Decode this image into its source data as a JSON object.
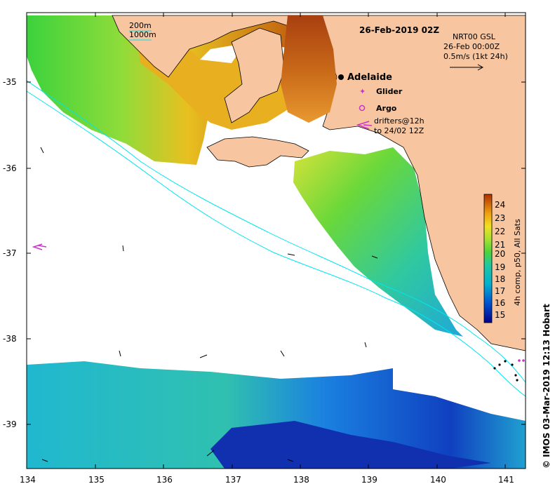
{
  "map": {
    "title": "26-Feb-2019 02Z",
    "info": {
      "line1": "NRT00 GSL",
      "line2": "26-Feb 00:00Z",
      "line3": "0.5m/s (1kt 24h)"
    },
    "contours": {
      "label_200": "200m",
      "label_1000": "1000m"
    },
    "places": {
      "city": "Adelaide"
    },
    "legend": {
      "glider": "Glider",
      "argo": "Argo",
      "drifters_line1": "drifters@12h",
      "drifters_line2": "to 24/02 12Z"
    },
    "colorbar": {
      "label": "4h comp, p50, All Sats",
      "ticks": [
        "24",
        "23",
        "22",
        "21",
        "20",
        "19",
        "18",
        "17",
        "16",
        "15"
      ]
    },
    "axes": {
      "x_ticks": [
        "134",
        "135",
        "136",
        "137",
        "138",
        "139",
        "140",
        "141"
      ],
      "y_ticks": [
        "-35",
        "-36",
        "-37",
        "-38",
        "-39"
      ]
    },
    "credit": "©  IMOS 03-Mar-2019 12:13 Hobart",
    "colors": {
      "land": "#f7c59f",
      "contour": "#00e5ee",
      "marker": "#cc33cc"
    }
  }
}
